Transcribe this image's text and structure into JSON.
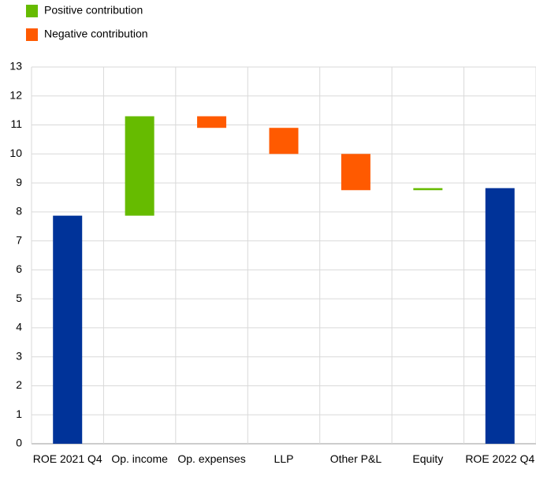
{
  "chart_data": {
    "type": "waterfall",
    "categories": [
      "ROE 2021 Q4",
      "Op. income",
      "Op. expenses",
      "LLP",
      "Other P&L",
      "Equity",
      "ROE 2022 Q4"
    ],
    "values": [
      7.87,
      3.43,
      -0.4,
      -0.9,
      -1.25,
      0.07,
      8.82
    ],
    "totals": [
      true,
      false,
      false,
      false,
      false,
      false,
      true
    ],
    "total_color": "#003399",
    "legend": [
      {
        "name": "Positive contribution",
        "color": "#66bb00"
      },
      {
        "name": "Negative contribution",
        "color": "#ff5a00"
      }
    ],
    "ylim": [
      0,
      13
    ],
    "yticks": [
      0,
      1,
      2,
      3,
      4,
      5,
      6,
      7,
      8,
      9,
      10,
      11,
      12,
      13
    ],
    "grid": true
  }
}
